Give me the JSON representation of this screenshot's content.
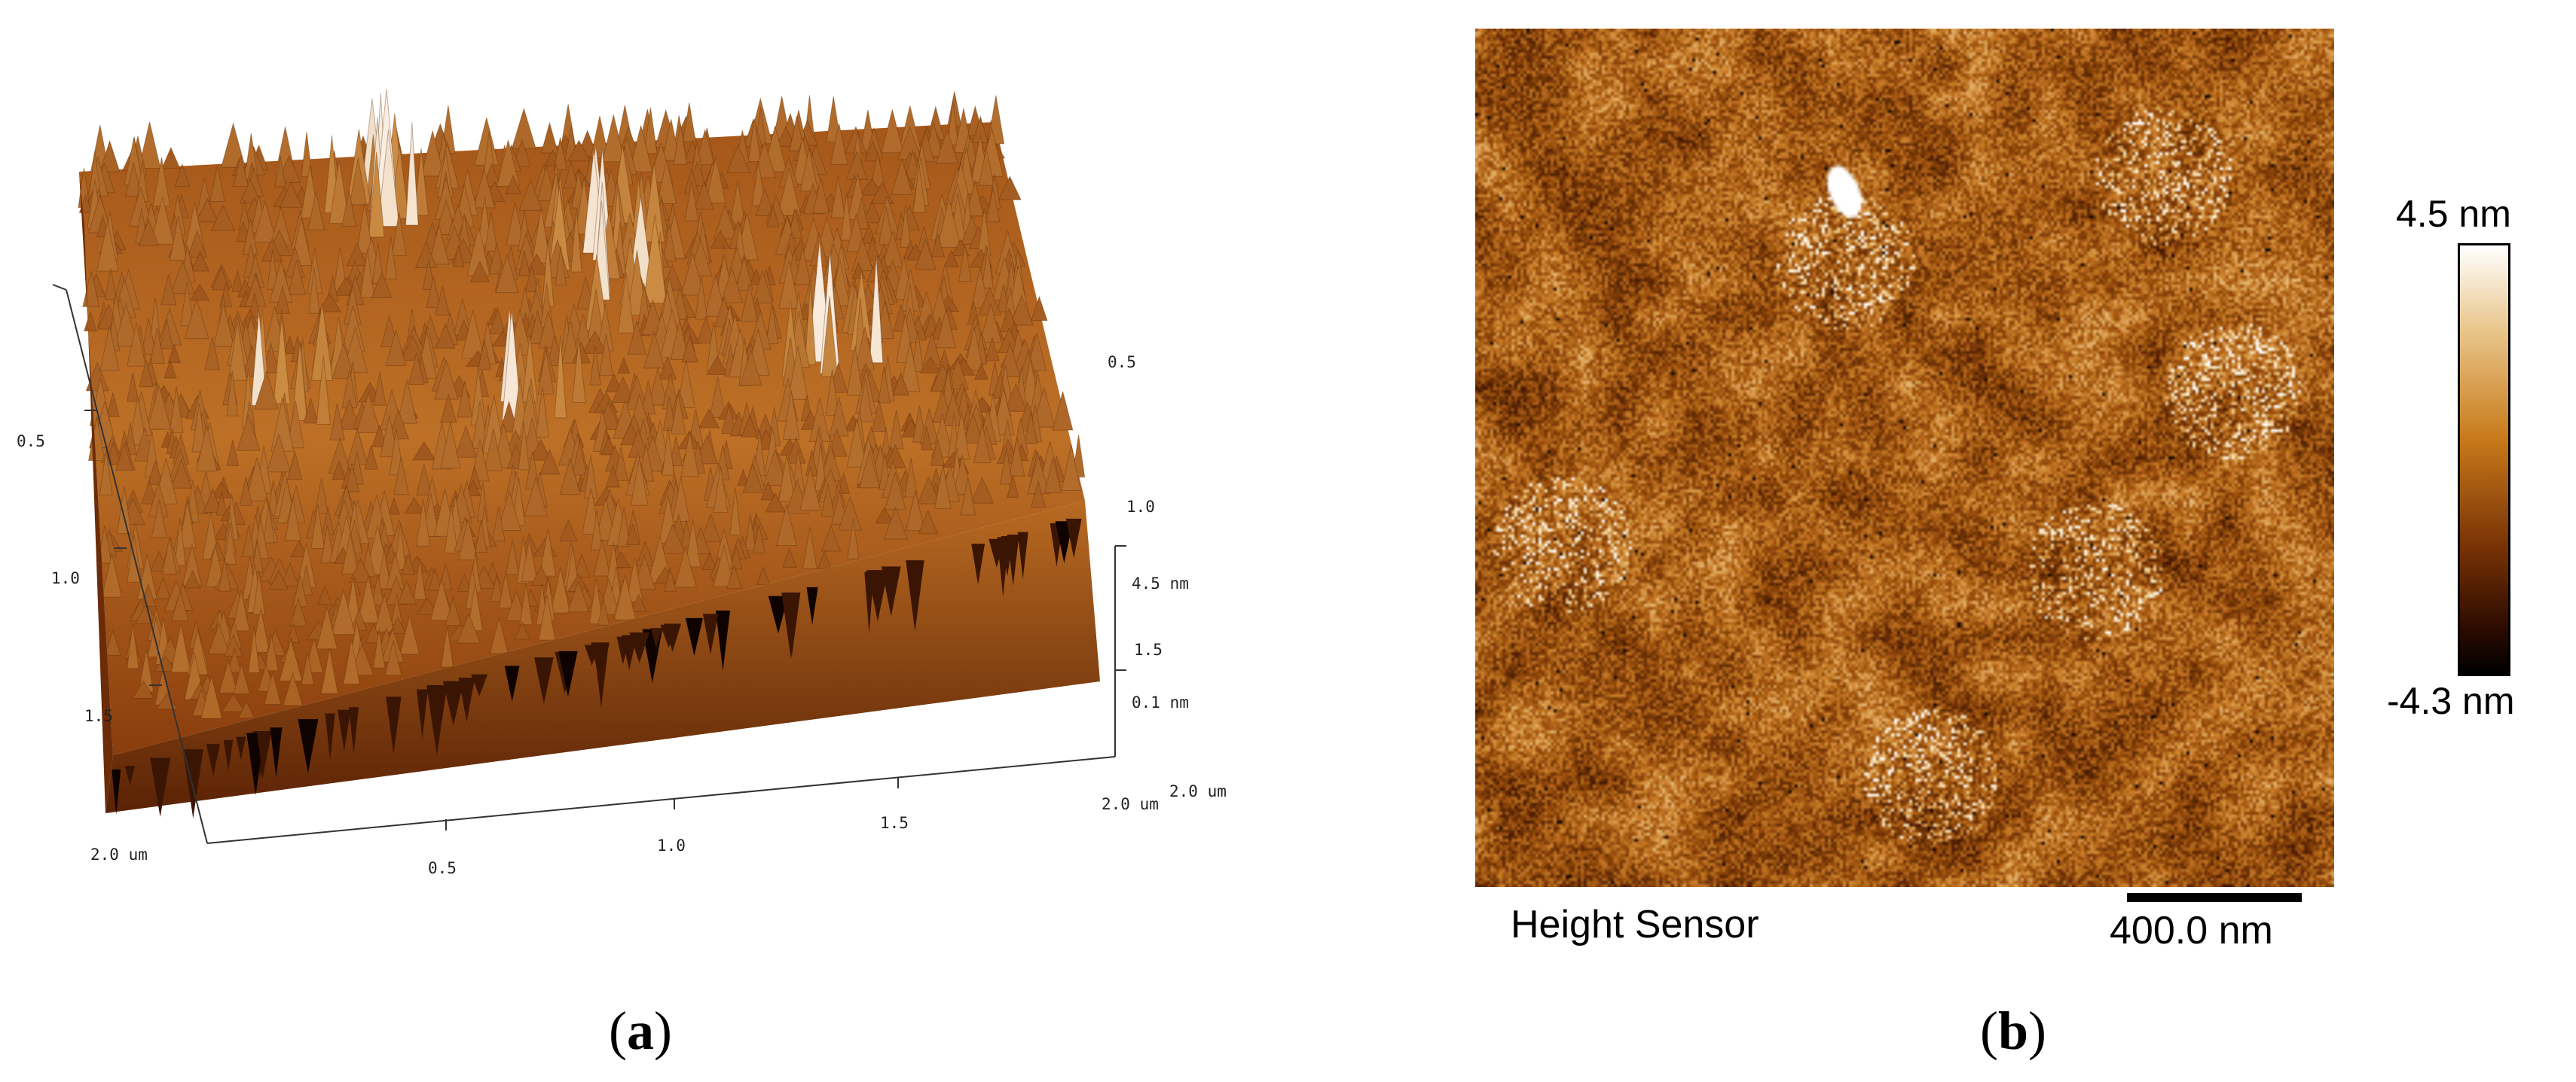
{
  "panel_a": {
    "label": "a",
    "left_axis_ticks": [
      "0.5",
      "1.0",
      "1.5",
      "2.0 um"
    ],
    "bottom_axis_ticks": [
      "0.5",
      "1.0",
      "1.5",
      "2.0 um"
    ],
    "right_axis_ticks": [
      "0.5",
      "1.0",
      "1.5",
      "2.0 um"
    ],
    "z_axis_ticks": [
      "4.5 nm",
      "0.1 nm"
    ]
  },
  "panel_b": {
    "label": "b",
    "colorbar_max": "4.5 nm",
    "colorbar_min": "-4.3 nm",
    "caption": "Height Sensor",
    "scale_bar_label": "400.0 nm"
  },
  "colors": {
    "dark": "#1a0600",
    "brown": "#8a3d08",
    "orange": "#c67a22",
    "light": "#e8c489",
    "white": "#ffffff"
  }
}
